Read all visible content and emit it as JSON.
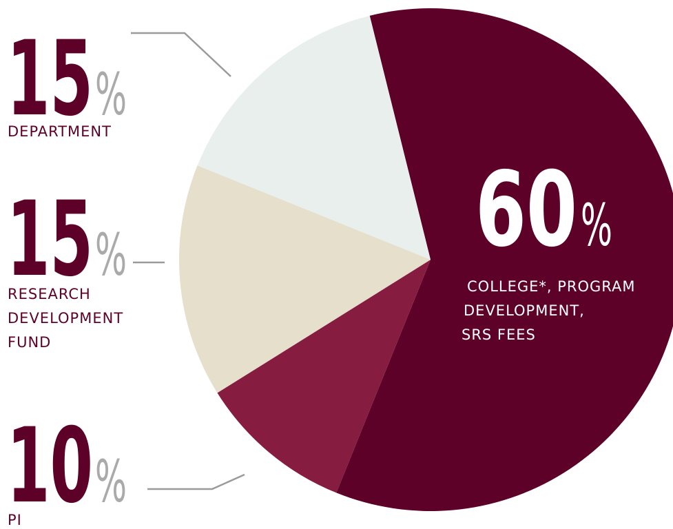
{
  "chart_data": {
    "type": "pie",
    "slices": [
      {
        "value": 60,
        "number": "60",
        "percent_sign": "%",
        "label_lines": [
          "COLLEGE*, PROGRAM",
          "DEVELOPMENT,",
          "SRS FEES"
        ],
        "color": "#5d0128",
        "text_color": "#ffffff",
        "pct_color": "#ffffff"
      },
      {
        "value": 10,
        "number": "10",
        "percent_sign": "%",
        "label_lines": [
          "PI"
        ],
        "color": "#861d41",
        "text_color": "#5d0128",
        "pct_color": "#aaaaaa"
      },
      {
        "value": 15,
        "number": "15",
        "percent_sign": "%",
        "label_lines": [
          "RESEARCH",
          "DEVELOPMENT",
          "FUND"
        ],
        "color": "#e5dfcb",
        "text_color": "#5d0128",
        "pct_color": "#aaaaaa"
      },
      {
        "value": 15,
        "number": "15",
        "percent_sign": "%",
        "label_lines": [
          "DEPARTMENT"
        ],
        "color": "#e9efed",
        "text_color": "#5d0128",
        "pct_color": "#aaaaaa"
      }
    ],
    "leader_line_color": "#9a9a9a"
  }
}
